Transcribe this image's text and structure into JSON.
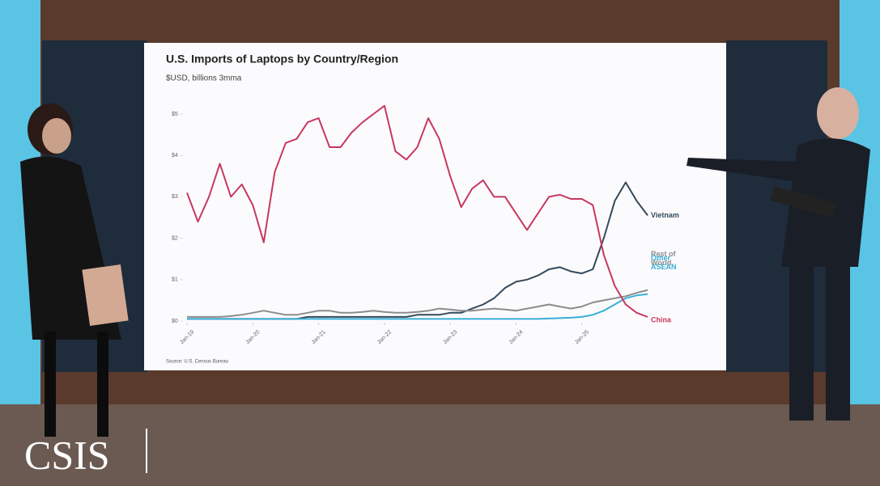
{
  "logo": "CSIS",
  "chart_data": {
    "type": "line",
    "title": "U.S. Imports of Laptops by Country/Region",
    "subtitle": "$USD, billions 3mma",
    "source": "Source: U.S. Census Bureau",
    "categories": [
      "Jan-19",
      null,
      null,
      null,
      null,
      null,
      "Jan-20",
      null,
      null,
      null,
      null,
      null,
      "Jan-21",
      null,
      null,
      null,
      null,
      null,
      "Jan-22",
      null,
      null,
      null,
      null,
      null,
      "Jan-23",
      null,
      null,
      null,
      null,
      null,
      "Jan-24",
      null,
      null,
      null,
      null,
      null,
      "Jan-25",
      null,
      null,
      null,
      null,
      null,
      null
    ],
    "ylim": [
      0,
      5.5
    ],
    "yticks": [
      {
        "value": 0,
        "label": "$0"
      },
      {
        "value": 1,
        "label": "$1"
      },
      {
        "value": 2,
        "label": "$2"
      },
      {
        "value": 3,
        "label": "$3"
      },
      {
        "value": 4,
        "label": "$4"
      },
      {
        "value": 5,
        "label": "$5"
      }
    ],
    "series": [
      {
        "name": "Vietnam",
        "color": "#34495a",
        "values": [
          0.05,
          0.05,
          0.05,
          0.05,
          0.05,
          0.05,
          0.05,
          0.05,
          0.05,
          0.05,
          0.05,
          0.1,
          0.1,
          0.1,
          0.1,
          0.1,
          0.1,
          0.1,
          0.1,
          0.1,
          0.1,
          0.15,
          0.15,
          0.15,
          0.2,
          0.2,
          0.3,
          0.4,
          0.55,
          0.8,
          0.95,
          1.0,
          1.1,
          1.25,
          1.3,
          1.2,
          1.15,
          1.25,
          2.0,
          2.9,
          3.35,
          2.9,
          2.55
        ]
      },
      {
        "name": "Rest of World",
        "color": "#8c8c8c",
        "values": [
          0.1,
          0.1,
          0.1,
          0.1,
          0.12,
          0.15,
          0.2,
          0.25,
          0.2,
          0.15,
          0.15,
          0.2,
          0.25,
          0.25,
          0.2,
          0.2,
          0.22,
          0.25,
          0.22,
          0.2,
          0.2,
          0.22,
          0.25,
          0.3,
          0.28,
          0.25,
          0.25,
          0.28,
          0.3,
          0.28,
          0.25,
          0.3,
          0.35,
          0.4,
          0.35,
          0.3,
          0.35,
          0.45,
          0.5,
          0.55,
          0.6,
          0.68,
          0.75
        ]
      },
      {
        "name": "Other ASEAN",
        "color": "#3aaed6",
        "values": [
          0.05,
          0.05,
          0.05,
          0.05,
          0.05,
          0.05,
          0.05,
          0.05,
          0.05,
          0.05,
          0.05,
          0.05,
          0.05,
          0.05,
          0.05,
          0.05,
          0.05,
          0.05,
          0.05,
          0.05,
          0.05,
          0.05,
          0.05,
          0.05,
          0.05,
          0.05,
          0.05,
          0.05,
          0.05,
          0.05,
          0.05,
          0.05,
          0.05,
          0.06,
          0.07,
          0.08,
          0.1,
          0.15,
          0.25,
          0.4,
          0.55,
          0.62,
          0.65
        ]
      },
      {
        "name": "China",
        "color": "#c8385e",
        "values": [
          3.1,
          2.4,
          3.0,
          3.8,
          3.0,
          3.3,
          2.8,
          1.9,
          3.6,
          4.3,
          4.4,
          4.8,
          4.9,
          4.2,
          4.2,
          4.55,
          4.8,
          5.0,
          5.2,
          4.1,
          3.9,
          4.2,
          4.9,
          4.4,
          3.5,
          2.75,
          3.2,
          3.4,
          3.0,
          3.0,
          2.6,
          2.2,
          2.6,
          3.0,
          3.05,
          2.95,
          2.95,
          2.8,
          1.6,
          0.85,
          0.4,
          0.2,
          0.1
        ]
      }
    ]
  }
}
